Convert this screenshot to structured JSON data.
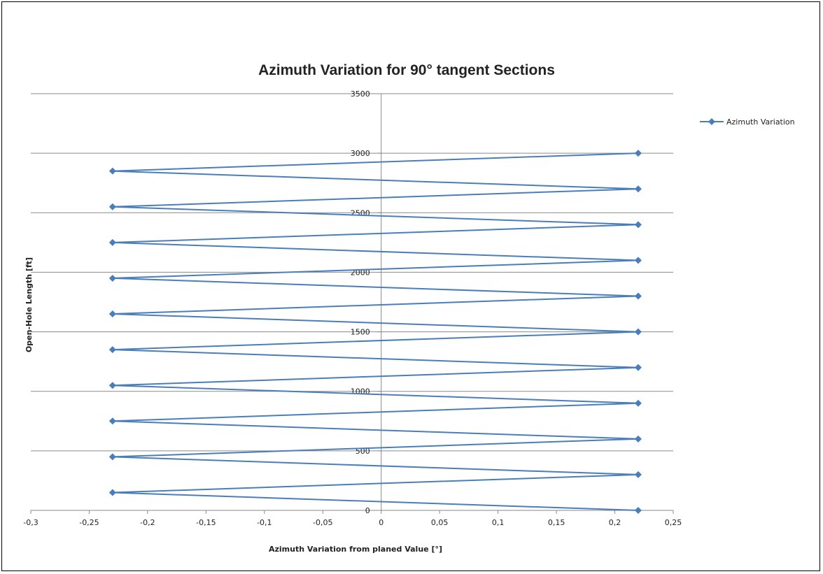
{
  "chart_data": {
    "type": "line",
    "title": "Azimuth Variation for 90° tangent Sections",
    "xlabel": "Azimuth Variation from planed Value [°]",
    "ylabel": "Open-Hole Length [ft]",
    "xlim": [
      -0.3,
      0.25
    ],
    "ylim": [
      0,
      3500
    ],
    "x_ticks": [
      "-0,3",
      "-0,25",
      "-0,2",
      "-0,15",
      "-0,1",
      "-0,05",
      "0",
      "0,05",
      "0,1",
      "0,15",
      "0,2",
      "0,25"
    ],
    "y_ticks": [
      "0",
      "500",
      "1000",
      "1500",
      "2000",
      "2500",
      "3000",
      "3500"
    ],
    "grid": "horizontal major gridlines",
    "legend": "right",
    "series": [
      {
        "name": "Azimuth Variation",
        "color": "#4a7ebb",
        "x": [
          0.22,
          -0.23,
          0.22,
          -0.23,
          0.22,
          -0.23,
          0.22,
          -0.23,
          0.22,
          -0.23,
          0.22,
          -0.23,
          0.22,
          -0.23,
          0.22,
          -0.23,
          0.22,
          -0.23,
          0.22,
          -0.23,
          0.22
        ],
        "y": [
          0,
          150,
          300,
          450,
          600,
          750,
          900,
          1050,
          1200,
          1350,
          1500,
          1650,
          1800,
          1950,
          2100,
          2250,
          2400,
          2550,
          2700,
          2850,
          3000
        ]
      }
    ]
  }
}
